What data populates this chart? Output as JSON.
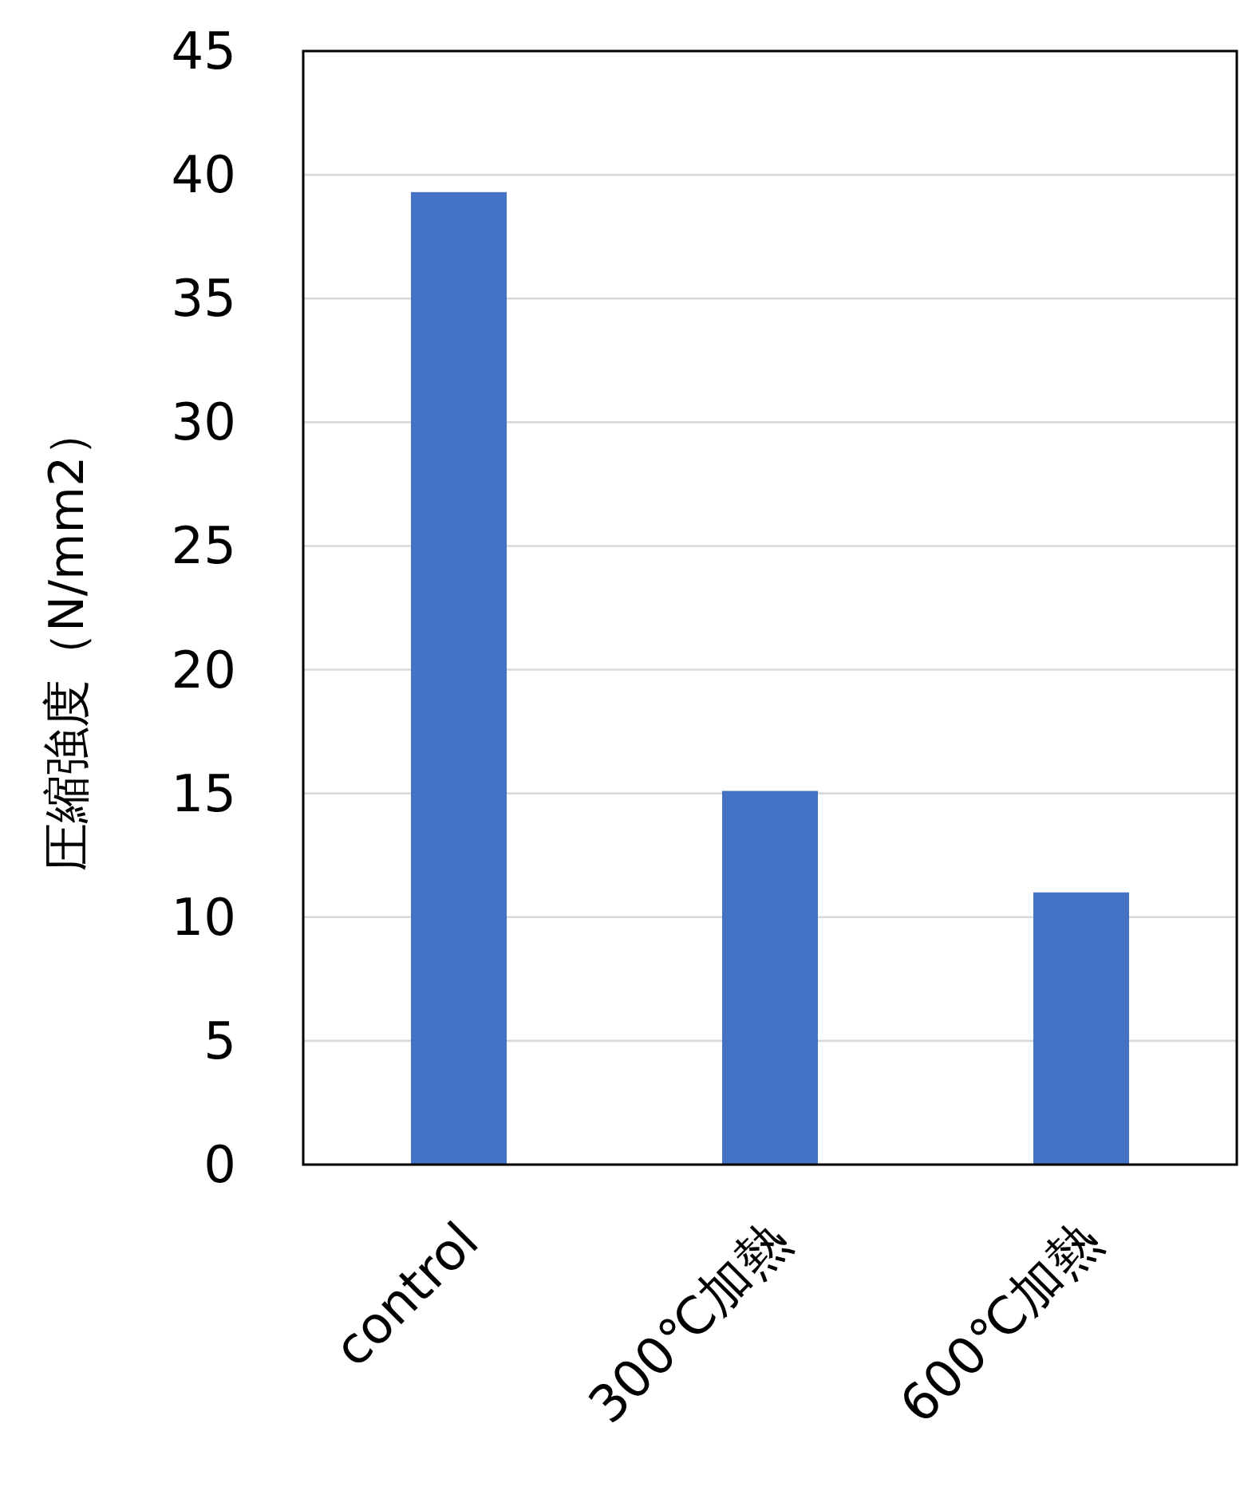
{
  "chart_data": {
    "type": "bar",
    "ylabel": "圧縮強度（N/mm2）",
    "categories": [
      "control",
      "300℃加熱",
      "600℃加熱"
    ],
    "values": [
      39.3,
      15.1,
      11.0
    ],
    "color": "#4472c4",
    "ylim": [
      0,
      45
    ],
    "yticks": [
      0,
      5,
      10,
      15,
      20,
      25,
      30,
      35,
      40,
      45
    ],
    "grid": "y"
  }
}
